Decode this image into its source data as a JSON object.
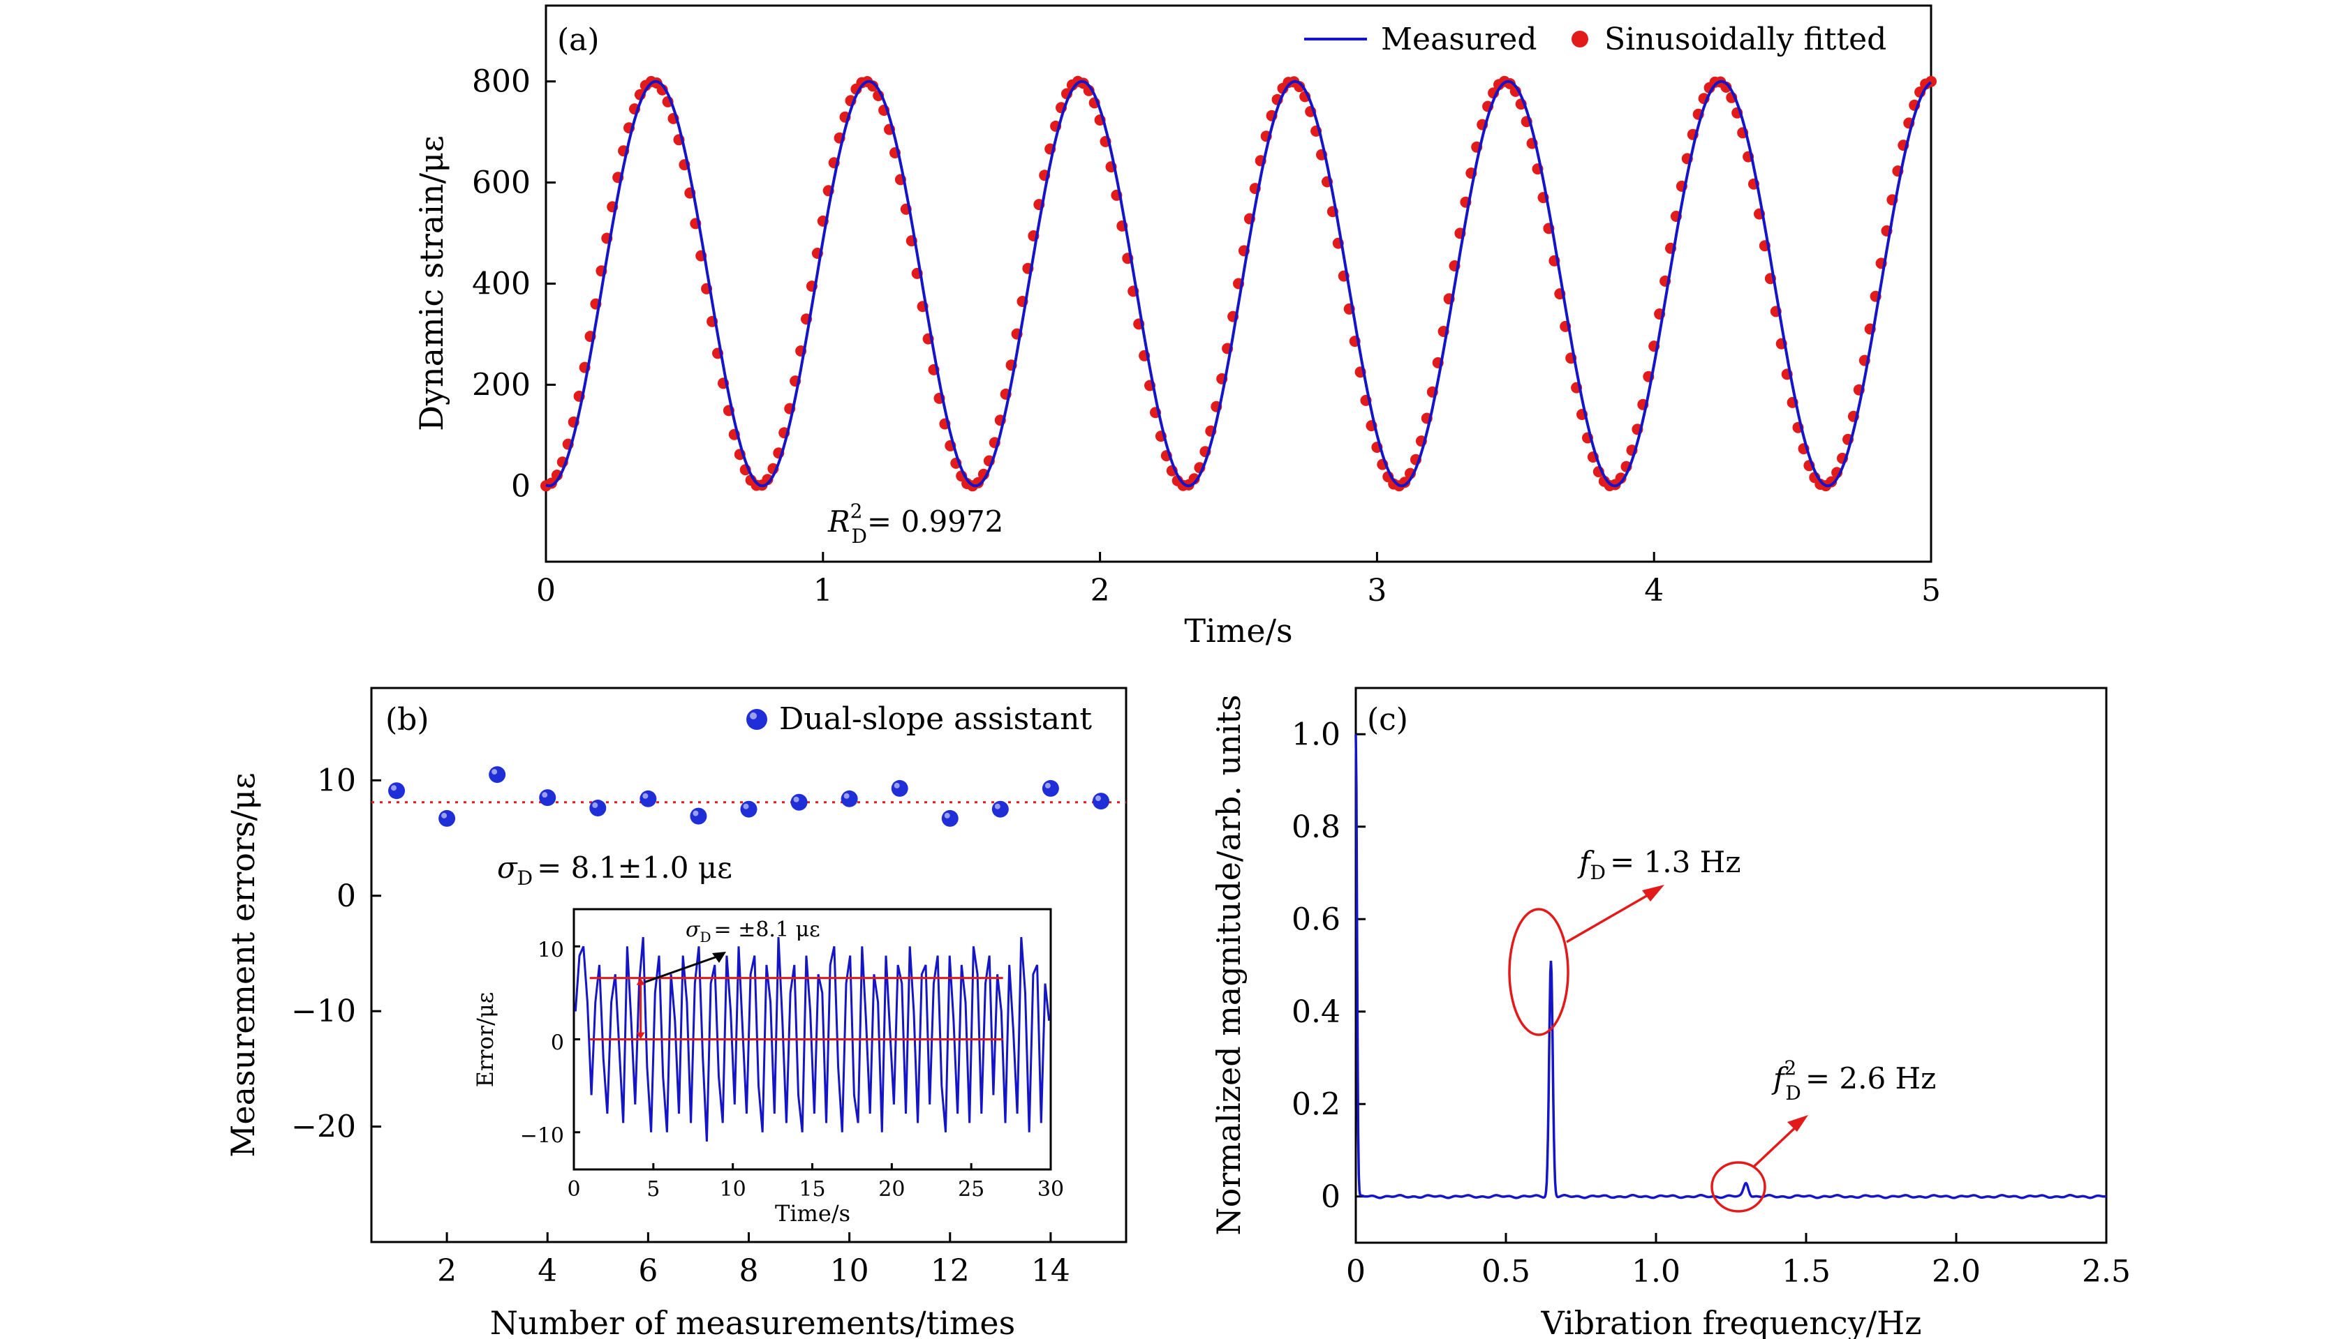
{
  "colors": {
    "measured": "#1414c8",
    "fitted": "#e31a1a",
    "dual_slope": "#1f2ed6",
    "mean_line": "#e31a1a",
    "annotation": "#e31a1a",
    "inset_arrow": "#000000"
  },
  "chart_data": [
    {
      "panel": "(a)",
      "type": "line",
      "xlabel": "Time/s",
      "ylabel": "Dynamic strain/με",
      "xlim": [
        0,
        5
      ],
      "ylim": [
        -150,
        950
      ],
      "xticks": [
        "0",
        "1",
        "2",
        "3",
        "4",
        "5"
      ],
      "yticks": [
        "0",
        "200",
        "400",
        "600",
        "800"
      ],
      "legend_position": "top-right",
      "series": [
        {
          "name": "Measured",
          "style": "line",
          "model": {
            "amplitude": 400,
            "offset": 400,
            "frequency_hz": 1.3,
            "phase_shift_s": 0.012
          }
        },
        {
          "name": "Sinusoidally fitted",
          "style": "markers",
          "model": {
            "amplitude": 400,
            "offset": 400,
            "frequency_hz": 1.3,
            "phase_shift_s": 0
          }
        }
      ],
      "annotation": {
        "symbol": "R",
        "superscript": "2",
        "subscript": "D",
        "text": "= 0.9972"
      }
    },
    {
      "panel": "(b)",
      "type": "scatter",
      "xlabel": "Number of measurements/times",
      "ylabel": "Measurement errors/με",
      "xlim": [
        0.5,
        15.5
      ],
      "ylim": [
        -30,
        18
      ],
      "xticks": [
        "2",
        "4",
        "6",
        "8",
        "10",
        "12",
        "14"
      ],
      "yticks": [
        "10",
        "0",
        "−10",
        "−20"
      ],
      "legend_position": "top-right",
      "series": [
        {
          "name": "Dual-slope assistant",
          "x": [
            1,
            2,
            3,
            4,
            5,
            6,
            7,
            8,
            9,
            10,
            11,
            12,
            13,
            14,
            15
          ],
          "y": [
            9.1,
            6.7,
            10.5,
            8.5,
            7.6,
            8.4,
            6.9,
            7.5,
            8.1,
            8.4,
            9.3,
            6.7,
            7.5,
            9.3,
            8.2
          ]
        }
      ],
      "mean_line": {
        "y": 8.1,
        "style": "dotted"
      },
      "annotation": {
        "symbol": "σ",
        "subscript": "D",
        "text": "= 8.1±1.0 με"
      },
      "inset": {
        "type": "line",
        "xlabel": "Time/s",
        "ylabel": "Error/με",
        "xlim": [
          0,
          30
        ],
        "ylim": [
          -14,
          14
        ],
        "xticks": [
          "0",
          "5",
          "10",
          "15",
          "20",
          "25",
          "30"
        ],
        "yticks": [
          "10",
          "0",
          "−10"
        ],
        "reference_lines": [
          6.6,
          0
        ],
        "reference_span_x": [
          1,
          27
        ],
        "annotation": {
          "symbol": "σ",
          "subscript": "D",
          "text": "= ±8.1 με"
        },
        "samples": [
          3,
          9,
          10,
          4,
          -6,
          4,
          8,
          -2,
          -8,
          4,
          7,
          -1,
          -9,
          10,
          2,
          -7,
          6,
          11,
          -3,
          -10,
          5,
          9,
          -4,
          -10,
          7,
          2,
          -8,
          9,
          4,
          -9,
          6,
          10,
          -2,
          -11,
          6,
          8,
          -4,
          -9,
          9,
          3,
          -7,
          10,
          1,
          -8,
          7,
          9,
          -5,
          -10,
          8,
          4,
          -8,
          11,
          2,
          -9,
          5,
          8,
          -6,
          -10,
          9,
          3,
          -8,
          7,
          5,
          -9,
          8,
          10,
          -3,
          -10,
          6,
          9,
          -6,
          -9,
          10,
          2,
          -8,
          7,
          4,
          -10,
          9,
          1,
          -7,
          8,
          6,
          -8,
          10,
          3,
          -9,
          7,
          8,
          -7,
          6,
          9,
          -5,
          -10,
          9,
          2,
          -8,
          8,
          4,
          -9,
          10,
          7,
          -8,
          6,
          9,
          -6,
          7,
          3,
          -9,
          8,
          1,
          -8,
          11,
          5,
          -10,
          7,
          8,
          -9,
          6,
          2
        ]
      }
    },
    {
      "panel": "(c)",
      "type": "line",
      "xlabel": "Vibration frequency/Hz",
      "ylabel": "Normalized magnitude/arb. units",
      "xlim": [
        0,
        2.5
      ],
      "ylim": [
        -0.1,
        1.1
      ],
      "xticks": [
        "0",
        "0.5",
        "1.0",
        "1.5",
        "2.0",
        "2.5"
      ],
      "yticks": [
        "0",
        "0.2",
        "0.4",
        "0.6",
        "0.8",
        "1.0"
      ],
      "series": [
        {
          "name": "",
          "peaks": [
            {
              "x": 0.0,
              "y": 1.0
            },
            {
              "x": 0.65,
              "y": 0.51
            },
            {
              "x": 1.3,
              "y": 0.03
            }
          ]
        }
      ],
      "annotations": [
        {
          "symbol": "f",
          "subscript": "D",
          "superscript": "",
          "text": "= 1.3 Hz"
        },
        {
          "symbol": "f",
          "subscript": "D",
          "superscript": "2",
          "text": "= 2.6 Hz"
        }
      ]
    }
  ]
}
